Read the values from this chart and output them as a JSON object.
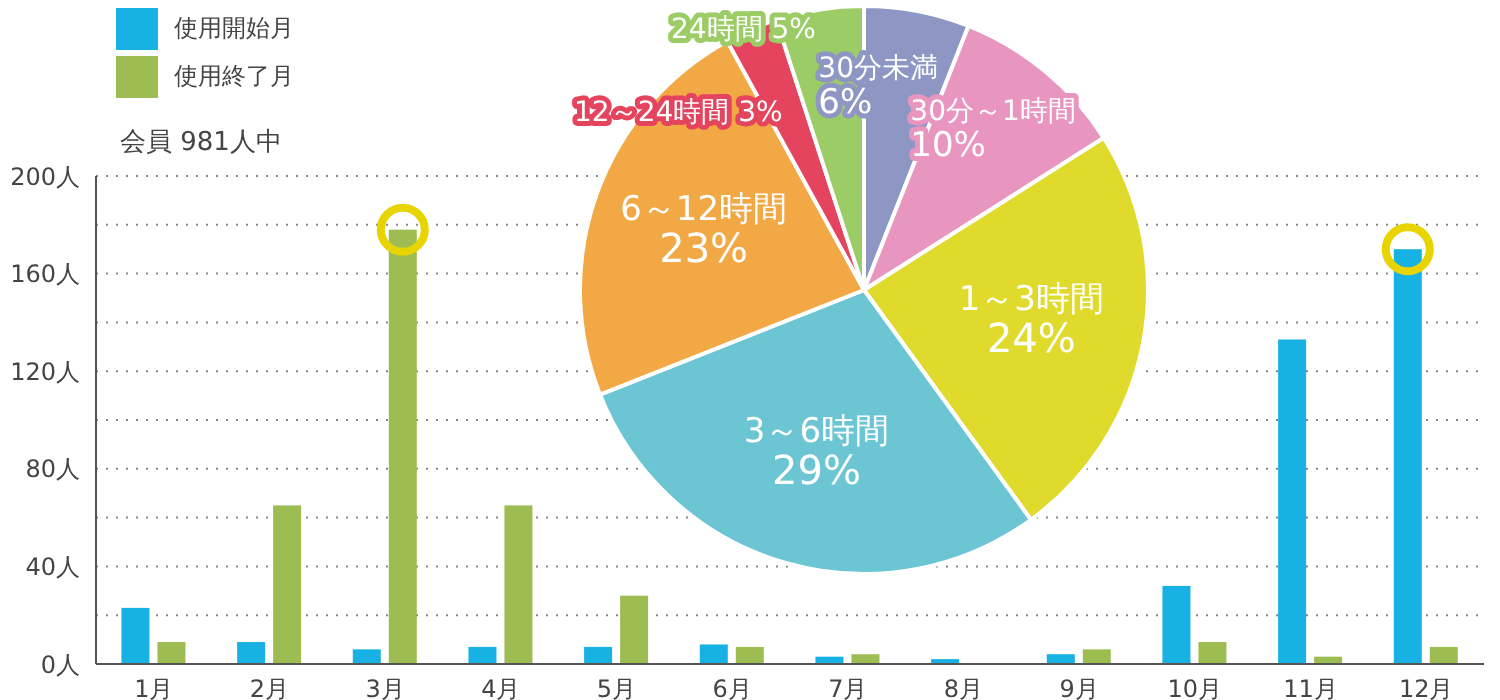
{
  "chart_data": [
    {
      "type": "bar",
      "subtitle": "会員 981人中",
      "categories": [
        "1月",
        "2月",
        "3月",
        "4月",
        "5月",
        "6月",
        "7月",
        "8月",
        "9月",
        "10月",
        "11月",
        "12月"
      ],
      "series": [
        {
          "name": "使用開始月",
          "color": "#17b1e3",
          "values": [
            23,
            9,
            6,
            7,
            7,
            8,
            3,
            2,
            4,
            32,
            133,
            170
          ]
        },
        {
          "name": "使用終了月",
          "color": "#9dbd52",
          "values": [
            9,
            65,
            178,
            65,
            28,
            7,
            4,
            0,
            6,
            9,
            3,
            7
          ]
        }
      ],
      "ylim": [
        0,
        200
      ],
      "yticks": [
        {
          "value": 0,
          "label": "0人"
        },
        {
          "value": 20,
          "label": null
        },
        {
          "value": 40,
          "label": "40人"
        },
        {
          "value": 60,
          "label": null
        },
        {
          "value": 80,
          "label": "80人"
        },
        {
          "value": 100,
          "label": null
        },
        {
          "value": 120,
          "label": "120人"
        },
        {
          "value": 140,
          "label": null
        },
        {
          "value": 160,
          "label": "160人"
        },
        {
          "value": 180,
          "label": null
        },
        {
          "value": 200,
          "label": "200人"
        }
      ],
      "grid": "y",
      "legend": "top left"
    },
    {
      "type": "pie",
      "categories": [
        "30分未満",
        "30分～1時間",
        "1～3時間",
        "3～6時間",
        "6～12時間",
        "12～24時間",
        "24時間"
      ],
      "values": [
        6,
        10,
        24,
        29,
        23,
        3,
        5
      ],
      "value_labels": [
        "6%",
        "10%",
        "24%",
        "29%",
        "23%",
        "3%",
        "5%"
      ],
      "colors": [
        "#8e97c4",
        "#e896c0",
        "#e0da2c",
        "#6cc5d2",
        "#f2a845",
        "#e4445e",
        "#9ccc65"
      ]
    }
  ]
}
